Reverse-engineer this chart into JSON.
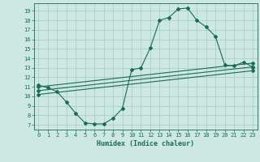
{
  "title": "",
  "xlabel": "Humidex (Indice chaleur)",
  "bg_color": "#cce8e0",
  "grid_color": "#aacfc8",
  "line_color": "#1a6b5a",
  "xlim": [
    -0.5,
    23.5
  ],
  "ylim": [
    6.5,
    19.8
  ],
  "xticks": [
    0,
    1,
    2,
    3,
    4,
    5,
    6,
    7,
    8,
    9,
    10,
    11,
    12,
    13,
    14,
    15,
    16,
    17,
    18,
    19,
    20,
    21,
    22,
    23
  ],
  "yticks": [
    7,
    8,
    9,
    10,
    11,
    12,
    13,
    14,
    15,
    16,
    17,
    18,
    19
  ],
  "line1_x": [
    0,
    1,
    2,
    3,
    4,
    5,
    6,
    7,
    8,
    9,
    10,
    11,
    12,
    13,
    14,
    15,
    16,
    17,
    18,
    19,
    20,
    21,
    22,
    23
  ],
  "line1_y": [
    11.2,
    10.9,
    10.5,
    9.4,
    8.2,
    7.2,
    7.1,
    7.1,
    7.7,
    8.7,
    12.8,
    13.0,
    15.1,
    18.0,
    18.3,
    19.2,
    19.3,
    18.0,
    17.3,
    16.3,
    13.3,
    13.2,
    13.6,
    13.1
  ],
  "line2_x": [
    0,
    23
  ],
  "line2_y": [
    11.0,
    13.5
  ],
  "line3_x": [
    0,
    23
  ],
  "line3_y": [
    10.6,
    13.1
  ],
  "line4_x": [
    0,
    23
  ],
  "line4_y": [
    10.2,
    12.7
  ]
}
